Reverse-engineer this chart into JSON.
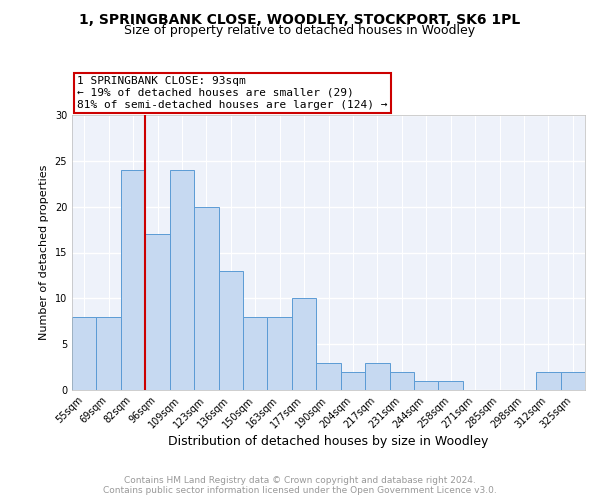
{
  "title1": "1, SPRINGBANK CLOSE, WOODLEY, STOCKPORT, SK6 1PL",
  "title2": "Size of property relative to detached houses in Woodley",
  "xlabel": "Distribution of detached houses by size in Woodley",
  "ylabel": "Number of detached properties",
  "categories": [
    "55sqm",
    "69sqm",
    "82sqm",
    "96sqm",
    "109sqm",
    "123sqm",
    "136sqm",
    "150sqm",
    "163sqm",
    "177sqm",
    "190sqm",
    "204sqm",
    "217sqm",
    "231sqm",
    "244sqm",
    "258sqm",
    "271sqm",
    "285sqm",
    "298sqm",
    "312sqm",
    "325sqm"
  ],
  "values": [
    8,
    8,
    24,
    17,
    24,
    20,
    13,
    8,
    8,
    10,
    3,
    2,
    3,
    2,
    1,
    1,
    0,
    0,
    0,
    2,
    2
  ],
  "bar_color": "#c6d9f1",
  "bar_edge_color": "#5b9bd5",
  "vline_index": 2.5,
  "vline_color": "#cc0000",
  "annotation_text": "1 SPRINGBANK CLOSE: 93sqm\n← 19% of detached houses are smaller (29)\n81% of semi-detached houses are larger (124) →",
  "annotation_box_color": "#cc0000",
  "ylim": [
    0,
    30
  ],
  "yticks": [
    0,
    5,
    10,
    15,
    20,
    25,
    30
  ],
  "footer_text": "Contains HM Land Registry data © Crown copyright and database right 2024.\nContains public sector information licensed under the Open Government Licence v3.0.",
  "background_color": "#eef2fa",
  "grid_color": "#ffffff",
  "title1_fontsize": 10,
  "title2_fontsize": 9,
  "xlabel_fontsize": 9,
  "ylabel_fontsize": 8,
  "tick_fontsize": 7,
  "footer_fontsize": 6.5,
  "annotation_fontsize": 8
}
